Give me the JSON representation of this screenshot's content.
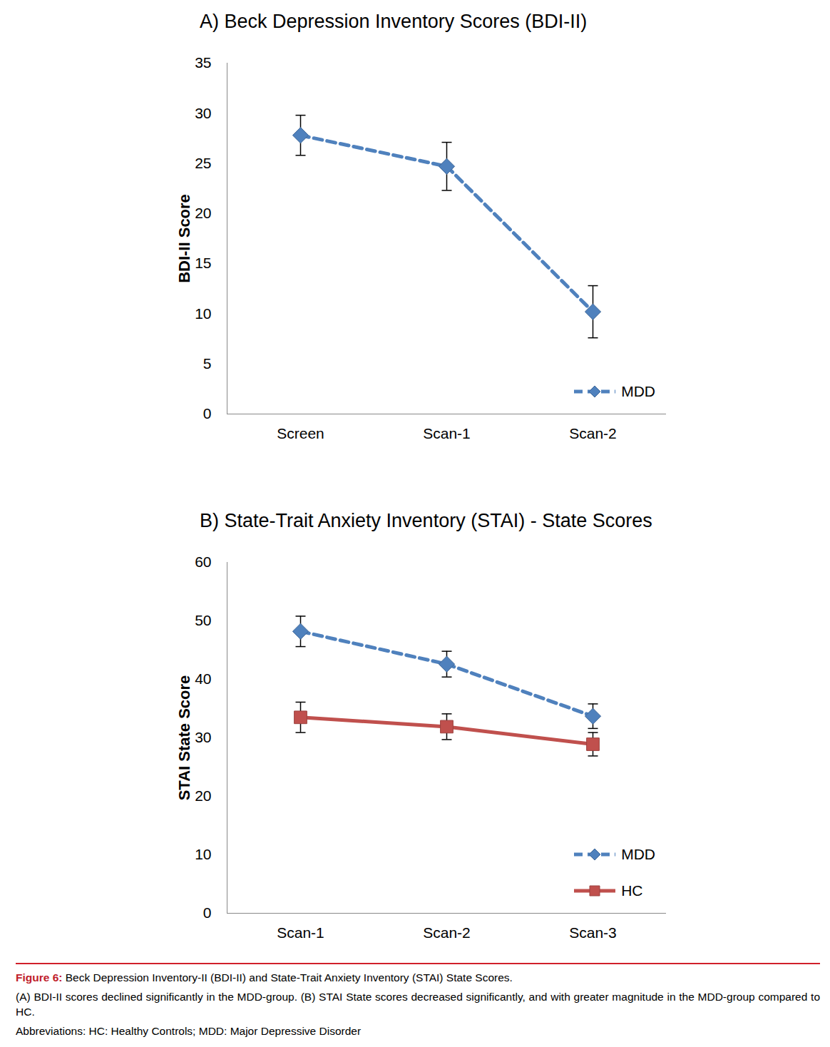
{
  "chart_data": [
    {
      "type": "line",
      "title": "A) Beck Depression Inventory Scores (BDI-II)",
      "y_label": "BDI-II Score",
      "categories": [
        "Screen",
        "Scan-1",
        "Scan-2"
      ],
      "series": [
        {
          "name": "MDD",
          "color": "#4f81bd",
          "marker": "diamond",
          "line_style": "dashed",
          "values": [
            27.8,
            24.7,
            10.2
          ],
          "errors": [
            2.0,
            2.4,
            2.6
          ]
        }
      ],
      "ylim": [
        0,
        35
      ],
      "yticks": [
        0,
        5,
        10,
        15,
        20,
        25,
        30,
        35
      ],
      "grid": false,
      "legend": "bottom-right"
    },
    {
      "type": "line",
      "title": "B) State-Trait Anxiety Inventory (STAI) - State Scores",
      "y_label": "STAI State Score",
      "categories": [
        "Scan-1",
        "Scan-2",
        "Scan-3"
      ],
      "series": [
        {
          "name": "MDD",
          "color": "#4f81bd",
          "marker": "diamond",
          "line_style": "dashed",
          "values": [
            48.2,
            42.6,
            33.7
          ],
          "errors": [
            2.6,
            2.2,
            2.1
          ]
        },
        {
          "name": "HC",
          "color": "#c0504d",
          "marker": "square",
          "line_style": "solid",
          "values": [
            33.5,
            31.9,
            28.9
          ],
          "errors": [
            2.6,
            2.2,
            2.0
          ]
        }
      ],
      "ylim": [
        0,
        60
      ],
      "yticks": [
        0,
        10,
        20,
        30,
        40,
        50,
        60
      ],
      "grid": false,
      "legend": "bottom-right"
    }
  ],
  "caption": {
    "label": "Figure 6:",
    "title": "Beck Depression Inventory-II (BDI-II) and State-Trait Anxiety Inventory (STAI) State Scores.",
    "text": "(A) BDI-II scores declined significantly in the MDD-group. (B) STAI State scores decreased significantly, and with greater magnitude in the MDD-group compared to HC.",
    "abbreviations": "Abbreviations: HC: Healthy Controls; MDD: Major Depressive Disorder"
  }
}
